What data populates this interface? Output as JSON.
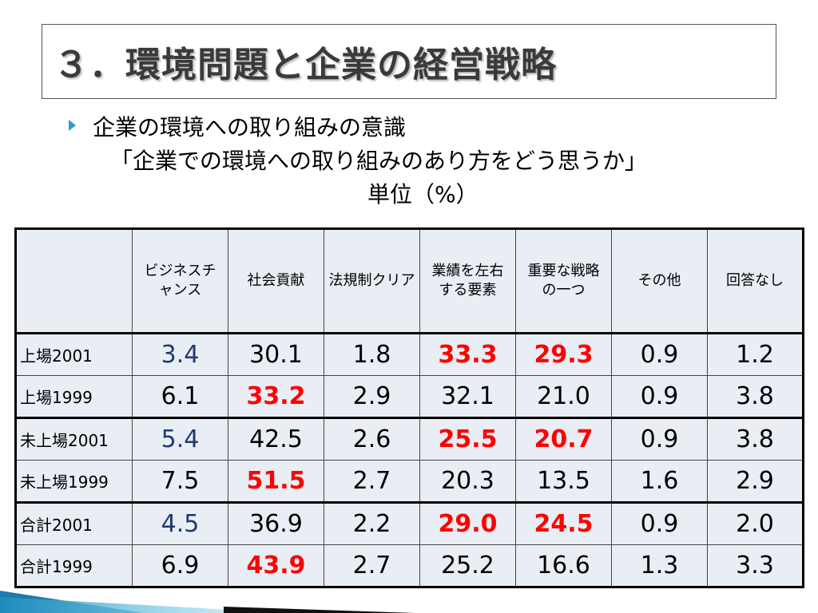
{
  "title": "３．環境問題と企業の経営戦略",
  "subtitle_line1": "企業の環境への取り組みの意識",
  "subtitle_line2": "「企業での環境への取り組みのあり方をどう思うか」",
  "unit": "単位（%）",
  "table": {
    "headers": [
      "",
      "ビジネスチャンス",
      "社会貢献",
      "法規制クリア",
      "業績を左右する要素",
      "重要な戦略の一つ",
      "その他",
      "回答なし"
    ],
    "rows": [
      {
        "label": "上場2001",
        "values": [
          "3.4",
          "30.1",
          "1.8",
          "33.3",
          "29.3",
          "0.9",
          "1.2"
        ]
      },
      {
        "label": "上場1999",
        "values": [
          "6.1",
          "33.2",
          "2.9",
          "32.1",
          "21.0",
          "0.9",
          "3.8"
        ]
      },
      {
        "label": "未上場2001",
        "values": [
          "5.4",
          "42.5",
          "2.6",
          "25.5",
          "20.7",
          "0.9",
          "3.8"
        ]
      },
      {
        "label": "未上場1999",
        "values": [
          "7.5",
          "51.5",
          "2.7",
          "20.3",
          "13.5",
          "1.6",
          "2.9"
        ]
      },
      {
        "label": "合計2001",
        "values": [
          "4.5",
          "36.9",
          "2.2",
          "29.0",
          "24.5",
          "0.9",
          "2.0"
        ]
      },
      {
        "label": "合計1999",
        "values": [
          "6.9",
          "43.9",
          "2.7",
          "25.2",
          "16.6",
          "1.3",
          "3.3"
        ]
      }
    ]
  },
  "colors": {
    "highlight_red": "#ff0000",
    "highlight_blue": "#1f3a6e",
    "bullet": "#2b9fc7",
    "table_bg": "#e9edf4"
  }
}
